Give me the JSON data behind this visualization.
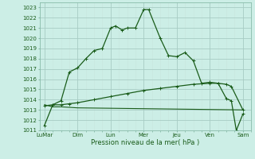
{
  "xlabel": "Pression niveau de la mer( hPa )",
  "bg_color": "#cceee6",
  "grid_color_major": "#b0d8d0",
  "grid_color_minor": "#d8f0eb",
  "line_color": "#1a5c1a",
  "ylim": [
    1011,
    1023.5
  ],
  "yticks": [
    1011,
    1012,
    1013,
    1014,
    1015,
    1016,
    1017,
    1018,
    1019,
    1020,
    1021,
    1022,
    1023
  ],
  "x_labels": [
    "LuMar",
    "Dim",
    "Lun",
    "Mer",
    "Jeu",
    "Ven",
    "Sam"
  ],
  "x_positions": [
    0,
    2,
    4,
    6,
    8,
    10,
    12
  ],
  "xlim": [
    -0.3,
    12.5
  ],
  "series1_x": [
    0,
    0.5,
    1.0,
    1.5,
    2.0,
    2.5,
    3.0,
    3.5,
    4.0,
    4.3,
    4.7,
    5.0,
    5.5,
    6.0,
    6.3,
    7.0,
    7.5,
    8.0,
    8.5,
    9.0,
    9.5,
    10.0,
    10.5,
    11.0,
    11.3,
    11.6,
    12.0
  ],
  "series1_y": [
    1011.5,
    1013.5,
    1013.9,
    1016.7,
    1017.1,
    1018.0,
    1018.8,
    1019.0,
    1021.0,
    1021.2,
    1020.8,
    1021.0,
    1021.0,
    1022.8,
    1022.8,
    1020.0,
    1018.3,
    1018.2,
    1018.6,
    1017.8,
    1015.6,
    1015.7,
    1015.6,
    1014.1,
    1013.9,
    1011.0,
    1012.6
  ],
  "series2_x": [
    0,
    0.5,
    1.0,
    1.5,
    2.0,
    3.0,
    4.0,
    5.0,
    6.0,
    7.0,
    8.0,
    9.0,
    10.0,
    10.5,
    11.0,
    11.3,
    12.0
  ],
  "series2_y": [
    1013.4,
    1013.5,
    1013.5,
    1013.6,
    1013.7,
    1014.0,
    1014.3,
    1014.6,
    1014.9,
    1015.1,
    1015.3,
    1015.5,
    1015.6,
    1015.6,
    1015.5,
    1015.3,
    1013.0
  ],
  "series3_x": [
    0,
    0.5,
    1.0,
    2.0,
    12.0
  ],
  "series3_y": [
    1013.5,
    1013.3,
    1013.3,
    1013.2,
    1013.0
  ]
}
